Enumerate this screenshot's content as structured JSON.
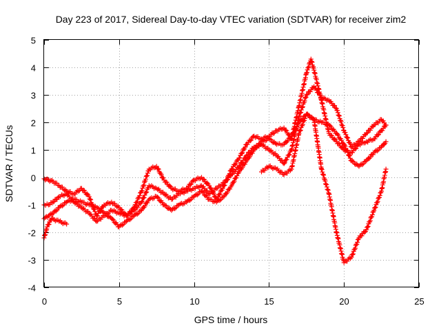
{
  "chart_data": {
    "type": "scatter",
    "title": "Day 223 of 2017, Sidereal Day-to-day VTEC variation (SDTVAR) for receiver zim2",
    "xlabel": "GPS time / hours",
    "ylabel": "SDTVAR / TECUs",
    "xlim": [
      0,
      25
    ],
    "ylim": [
      -4,
      5
    ],
    "xticks": [
      "0",
      "5",
      "10",
      "15",
      "20",
      "25"
    ],
    "yticks": [
      "-4",
      "-3",
      "-2",
      "-1",
      "0",
      "1",
      "2",
      "3",
      "4",
      "5"
    ],
    "grid": true,
    "legend": "none",
    "marker": "plus",
    "color": "#ff0000",
    "series": [
      {
        "x": [
          0.0,
          0.3,
          0.6,
          1.0,
          1.5,
          2.0,
          2.5,
          3.0,
          3.5,
          4.0,
          4.5,
          5.0,
          5.5,
          6.0,
          6.5,
          7.0,
          7.5,
          8.0,
          8.5,
          9.0,
          9.5,
          10.0,
          10.5,
          11.0,
          11.5,
          12.0,
          12.5,
          13.0,
          13.5,
          14.0,
          14.5,
          15.0,
          15.5,
          16.0,
          16.5,
          17.0,
          17.5,
          17.8,
          18.0,
          18.5,
          19.0,
          19.5,
          20.0,
          20.5,
          21.0,
          21.5,
          22.0,
          22.5,
          22.8
        ],
        "y": [
          -0.05,
          -0.1,
          -0.15,
          -0.3,
          -0.5,
          -0.6,
          -0.4,
          -0.7,
          -1.4,
          -1.0,
          -0.9,
          -1.1,
          -1.4,
          -1.1,
          -0.5,
          0.3,
          0.4,
          -0.1,
          -0.4,
          -0.5,
          -0.4,
          -0.1,
          0.0,
          -0.3,
          -0.8,
          -0.3,
          0.3,
          0.7,
          1.2,
          1.5,
          1.4,
          1.5,
          1.7,
          1.8,
          1.4,
          2.6,
          3.8,
          4.3,
          3.9,
          2.8,
          1.6,
          1.3,
          1.0,
          0.9,
          1.2,
          1.3,
          1.4,
          1.7,
          1.9
        ]
      },
      {
        "x": [
          0.0,
          0.3,
          0.6,
          1.0,
          1.5,
          2.0,
          2.5,
          3.0,
          3.5,
          4.0,
          4.5,
          5.0,
          5.5,
          6.0,
          6.5,
          7.0,
          7.5,
          8.0,
          8.5,
          9.0,
          9.5,
          10.0,
          10.5,
          11.0,
          11.5,
          12.0,
          12.5,
          13.0,
          13.5,
          14.0,
          14.5,
          15.0,
          15.5,
          16.0,
          16.5,
          17.0,
          17.5,
          18.0,
          18.5,
          19.0,
          19.5,
          20.0,
          20.5,
          21.0,
          21.5,
          22.0,
          22.5,
          22.8
        ],
        "y": [
          -1.0,
          -1.0,
          -0.9,
          -0.7,
          -0.6,
          -0.9,
          -1.1,
          -1.3,
          -1.6,
          -1.4,
          -1.2,
          -1.3,
          -1.4,
          -1.2,
          -0.9,
          -0.3,
          -0.4,
          -0.6,
          -0.8,
          -0.6,
          -0.5,
          -0.4,
          -0.3,
          -0.6,
          -0.4,
          -0.2,
          0.1,
          0.4,
          0.8,
          1.1,
          1.2,
          1.0,
          0.8,
          0.5,
          1.0,
          2.2,
          3.0,
          3.3,
          2.9,
          2.8,
          2.5,
          1.7,
          1.1,
          1.3,
          1.6,
          1.9,
          2.1,
          1.9
        ]
      },
      {
        "x": [
          0.0,
          0.3,
          0.6,
          1.0,
          1.5,
          2.0,
          2.5,
          3.0,
          3.5,
          4.0,
          4.5,
          5.0,
          5.5,
          6.0,
          6.5,
          7.0,
          7.5,
          8.0,
          8.5,
          9.0,
          9.5,
          10.0,
          10.5,
          11.0,
          11.5,
          12.0,
          12.5,
          13.0,
          13.5,
          14.0,
          14.5,
          15.0,
          15.5,
          16.0,
          16.5,
          17.0,
          17.5,
          18.0,
          18.5,
          19.0,
          19.5,
          20.0,
          20.5,
          21.0,
          21.5,
          22.0,
          22.5,
          22.8
        ],
        "y": [
          -1.5,
          -1.4,
          -1.3,
          -1.1,
          -0.9,
          -0.8,
          -0.9,
          -1.0,
          -1.1,
          -1.3,
          -1.5,
          -1.8,
          -1.6,
          -1.4,
          -1.2,
          -0.8,
          -0.7,
          -1.0,
          -1.2,
          -1.0,
          -0.9,
          -0.7,
          -0.5,
          -0.8,
          -0.9,
          -0.7,
          -0.3,
          0.2,
          0.6,
          1.0,
          1.3,
          1.4,
          1.2,
          1.2,
          1.5,
          2.0,
          2.3,
          2.1,
          2.0,
          1.9,
          1.6,
          1.2,
          0.6,
          0.4,
          0.6,
          0.9,
          1.1,
          1.3
        ]
      },
      {
        "x": [
          0.0,
          0.2,
          0.5,
          1.0,
          1.5,
          14.5,
          15.0,
          15.5,
          16.0,
          16.5,
          17.0,
          17.5,
          18.0,
          18.5,
          19.0,
          19.5,
          20.0,
          20.5,
          21.0,
          21.5,
          22.0,
          22.5,
          22.8
        ],
        "y": [
          -2.2,
          -1.8,
          -1.5,
          -1.6,
          -1.7,
          0.2,
          0.4,
          0.3,
          0.1,
          0.3,
          1.6,
          2.3,
          2.1,
          0.3,
          -0.6,
          -2.0,
          -3.1,
          -2.9,
          -2.2,
          -1.9,
          -1.2,
          -0.5,
          0.3
        ]
      }
    ]
  }
}
